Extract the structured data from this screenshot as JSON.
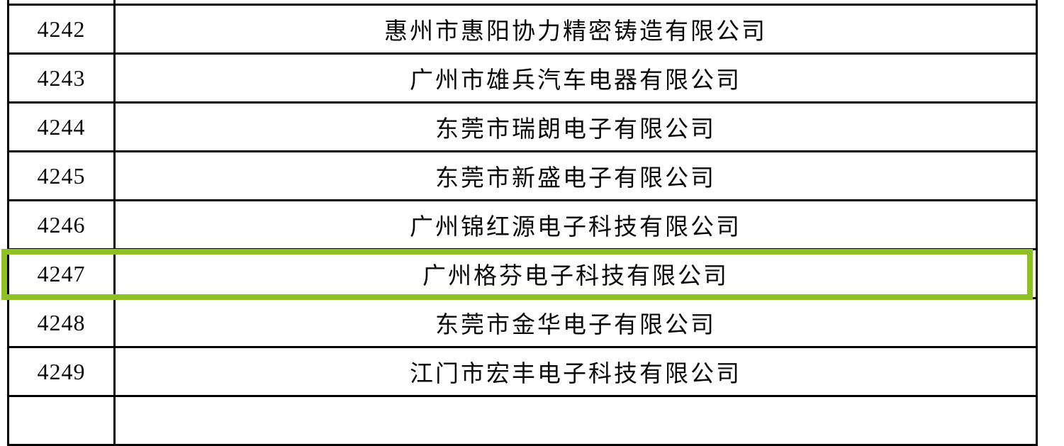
{
  "page": {
    "background_color": "#ffffff",
    "border_color": "#000000",
    "highlight_color": "#8dc21f"
  },
  "table": {
    "columns": [
      {
        "name": "row-number"
      },
      {
        "name": "company-name"
      }
    ],
    "rows": [
      {
        "number": "4242",
        "company": "惠州市惠阳协力精密铸造有限公司",
        "highlighted": false
      },
      {
        "number": "4243",
        "company": "广州市雄兵汽车电器有限公司",
        "highlighted": false
      },
      {
        "number": "4244",
        "company": "东莞市瑞朗电子有限公司",
        "highlighted": false
      },
      {
        "number": "4245",
        "company": "东莞市新盛电子有限公司",
        "highlighted": false
      },
      {
        "number": "4246",
        "company": "广州锦红源电子科技有限公司",
        "highlighted": false
      },
      {
        "number": "4247",
        "company": "广州格芬电子科技有限公司",
        "highlighted": true
      },
      {
        "number": "4248",
        "company": "东莞市金华电子有限公司",
        "highlighted": false
      },
      {
        "number": "4249",
        "company": "江门市宏丰电子科技有限公司",
        "highlighted": false
      }
    ],
    "highlighted_row_number": "4247",
    "partial_rows": {
      "top_visible": true,
      "bottom_visible": true
    }
  }
}
